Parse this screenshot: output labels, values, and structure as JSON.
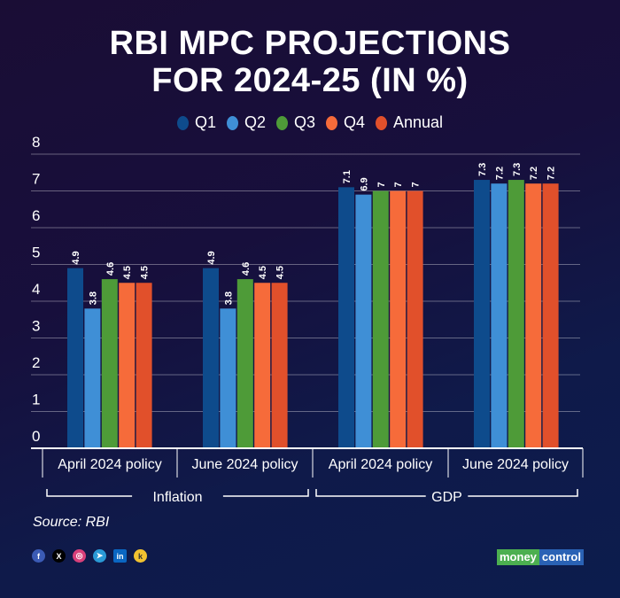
{
  "title_lines": [
    "RBI MPC PROJECTIONS",
    "FOR 2024-25 (IN %)"
  ],
  "source": "Source: RBI",
  "logo": {
    "part1": "money",
    "part2": "control"
  },
  "social_icons": [
    "facebook-icon",
    "x-icon",
    "instagram-icon",
    "telegram-icon",
    "linkedin-icon",
    "koo-icon"
  ],
  "chart_data": {
    "type": "bar",
    "title": "RBI MPC PROJECTIONS FOR 2024-25 (IN %)",
    "categories": [
      "April 2024 policy",
      "June 2024 policy",
      "April 2024 policy",
      "June 2024 policy"
    ],
    "category_groups": [
      {
        "label": "Inflation",
        "span": [
          0,
          1
        ]
      },
      {
        "label": "GDP",
        "span": [
          2,
          3
        ]
      }
    ],
    "series": [
      {
        "name": "Q1",
        "color": "#0e4b8c",
        "values": [
          4.9,
          4.9,
          7.1,
          7.3
        ],
        "labels": [
          "4.9",
          "4.9",
          "7.1",
          "7.3"
        ]
      },
      {
        "name": "Q2",
        "color": "#3f8fd6",
        "values": [
          3.8,
          3.8,
          6.9,
          7.2
        ],
        "labels": [
          "3.8",
          "3.8",
          "6.9",
          "7.2"
        ]
      },
      {
        "name": "Q3",
        "color": "#4e9b38",
        "values": [
          4.6,
          4.6,
          7,
          7.3
        ],
        "labels": [
          "4.6",
          "4.6",
          "7",
          "7.3"
        ]
      },
      {
        "name": "Q4",
        "color": "#f66b3a",
        "values": [
          4.5,
          4.5,
          7,
          7.2
        ],
        "labels": [
          "4.5",
          "4.5",
          "7",
          "7.2"
        ]
      },
      {
        "name": "Annual",
        "color": "#e1502b",
        "values": [
          4.5,
          4.5,
          7,
          7.2
        ],
        "labels": [
          "4.5",
          "4.5",
          "7",
          "7.2"
        ]
      }
    ],
    "yticks": [
      "0",
      "1",
      "2",
      "3",
      "4",
      "5",
      "6",
      "7",
      "8"
    ],
    "ylim": [
      0,
      8
    ],
    "grid": true,
    "legend": "top"
  }
}
